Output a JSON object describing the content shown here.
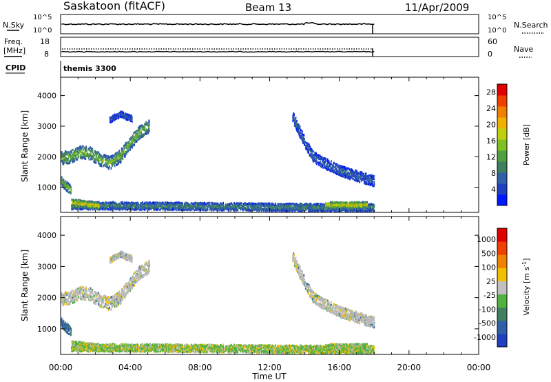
{
  "header": {
    "station": "Saskatoon (fitACF)",
    "beam": "Beam 13",
    "date": "11/Apr/2009"
  },
  "panels": {
    "nsky": {
      "label": "N.Sky",
      "left_ticks": [
        "10^5",
        "10^0"
      ],
      "right_ticks": [
        "10^5",
        "10^0"
      ],
      "right_label": "N.Search"
    },
    "freq": {
      "label_line1": "Freq.",
      "label_line2": "[MHz]",
      "left_ticks": [
        "18",
        "8"
      ],
      "right_ticks": [
        "60",
        "0"
      ],
      "right_label": "Nave"
    },
    "cpid": {
      "label": "CPID",
      "value": "themis 3300"
    }
  },
  "colors": {
    "power": [
      "#0018ff",
      "#2040c0",
      "#3060a8",
      "#408060",
      "#50a040",
      "#80c020",
      "#c0d010",
      "#f0b000",
      "#f08000",
      "#f04000",
      "#e00000"
    ],
    "velocity": [
      "#2040c0",
      "#3060a8",
      "#408060",
      "#50b040",
      "#c0c0c0",
      "#f0c000",
      "#f08000",
      "#f04000",
      "#e00000"
    ],
    "ground_scatter": "#b8b8b8"
  },
  "chart_data": [
    {
      "type": "heatmap",
      "title": "Power",
      "ylabel": "Slant Range [km]",
      "xlabel": "Time UT",
      "xlim": [
        0,
        24
      ],
      "ylim": [
        180,
        4600
      ],
      "x_tick_labels": [
        "00:00",
        "04:00",
        "08:00",
        "12:00",
        "16:00",
        "20:00",
        "00:00"
      ],
      "y_tick_labels": [
        "1000",
        "2000",
        "3000",
        "4000"
      ],
      "colorbar": {
        "label": "Power [dB]",
        "ticks": [
          "4",
          "8",
          "12",
          "16",
          "20",
          "24",
          "28"
        ],
        "range": [
          0,
          30
        ]
      },
      "regions": [
        {
          "t0": 0.0,
          "t1": 5.1,
          "r_center": [
            1950,
            2000,
            2150,
            2100,
            1900,
            1800,
            2000,
            2400,
            2800,
            3000
          ],
          "width": 420,
          "power": 14
        },
        {
          "t0": 2.8,
          "t1": 4.1,
          "r_center": [
            3200,
            3300,
            3400,
            3300,
            3250
          ],
          "width": 200,
          "power": 6
        },
        {
          "t0": 13.3,
          "t1": 18.0,
          "r_center": [
            3300,
            2600,
            2000,
            1800,
            1650,
            1500,
            1400,
            1300,
            1200
          ],
          "width": 350,
          "power": 7
        },
        {
          "t0": 0.0,
          "t1": 0.6,
          "r_center": [
            1200,
            900
          ],
          "width": 300,
          "power": 15
        },
        {
          "t0": 0.6,
          "t1": 18.0,
          "r_center": [
            400,
            380,
            350,
            330
          ],
          "width": 250,
          "power": 10
        },
        {
          "t0": 15.2,
          "t1": 17.6,
          "r_center": [
            420,
            420,
            420
          ],
          "width": 200,
          "power": 20
        },
        {
          "t0": 0.6,
          "t1": 2.2,
          "r_center": [
            500,
            450,
            400
          ],
          "width": 220,
          "power": 20
        }
      ]
    },
    {
      "type": "heatmap",
      "title": "Velocity",
      "ylabel": "Slant Range [km]",
      "xlabel": "Time UT",
      "xlim": [
        0,
        24
      ],
      "ylim": [
        180,
        4600
      ],
      "x_tick_labels": [
        "00:00",
        "04:00",
        "08:00",
        "12:00",
        "16:00",
        "20:00",
        "00:00"
      ],
      "y_tick_labels": [
        "1000",
        "2000",
        "3000",
        "4000"
      ],
      "colorbar": {
        "label": "Velocity [m s^-1]",
        "ticks": [
          "1000",
          "500",
          "100",
          "25",
          "-25",
          "-100",
          "-500",
          "-1000"
        ]
      }
    }
  ]
}
